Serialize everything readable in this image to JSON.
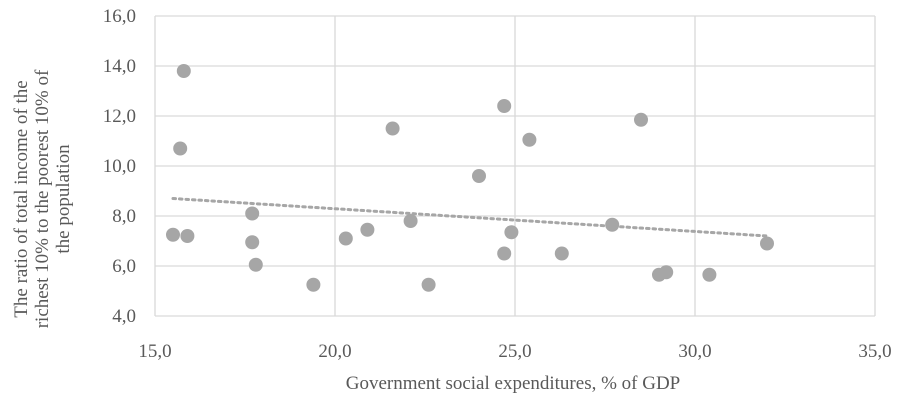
{
  "chart_data": {
    "type": "scatter",
    "xlabel": "Government social expenditures, % of GDP",
    "ylabel_lines": [
      "The ratio of total income of the",
      "richest 10% to the poorest 10% of",
      "the population"
    ],
    "xlim": [
      15,
      35
    ],
    "ylim": [
      4,
      16
    ],
    "x_ticks": [
      "15,0",
      "20,0",
      "25,0",
      "30,0",
      "35,0"
    ],
    "y_ticks": [
      "4,0",
      "6,0",
      "8,0",
      "10,0",
      "12,0",
      "14,0",
      "16,0"
    ],
    "grid": true,
    "point_color": "#a6a6a6",
    "trendline": {
      "style": "dotted",
      "color": "#a6a6a6",
      "x": [
        15.5,
        32.0
      ],
      "y": [
        8.7,
        7.2
      ]
    },
    "points": [
      {
        "x": 15.5,
        "y": 7.25
      },
      {
        "x": 15.7,
        "y": 10.7
      },
      {
        "x": 15.8,
        "y": 13.8
      },
      {
        "x": 15.9,
        "y": 7.2
      },
      {
        "x": 17.7,
        "y": 8.1
      },
      {
        "x": 17.7,
        "y": 6.95
      },
      {
        "x": 17.8,
        "y": 6.05
      },
      {
        "x": 19.4,
        "y": 5.25
      },
      {
        "x": 20.3,
        "y": 7.1
      },
      {
        "x": 20.9,
        "y": 7.45
      },
      {
        "x": 21.6,
        "y": 11.5
      },
      {
        "x": 22.1,
        "y": 7.8
      },
      {
        "x": 22.6,
        "y": 5.25
      },
      {
        "x": 24.0,
        "y": 9.6
      },
      {
        "x": 24.7,
        "y": 12.4
      },
      {
        "x": 24.7,
        "y": 6.5
      },
      {
        "x": 24.9,
        "y": 7.35
      },
      {
        "x": 25.4,
        "y": 11.05
      },
      {
        "x": 26.3,
        "y": 6.5
      },
      {
        "x": 27.7,
        "y": 7.65
      },
      {
        "x": 28.5,
        "y": 11.85
      },
      {
        "x": 29.0,
        "y": 5.65
      },
      {
        "x": 29.2,
        "y": 5.75
      },
      {
        "x": 30.4,
        "y": 5.65
      },
      {
        "x": 32.0,
        "y": 6.9
      }
    ]
  }
}
